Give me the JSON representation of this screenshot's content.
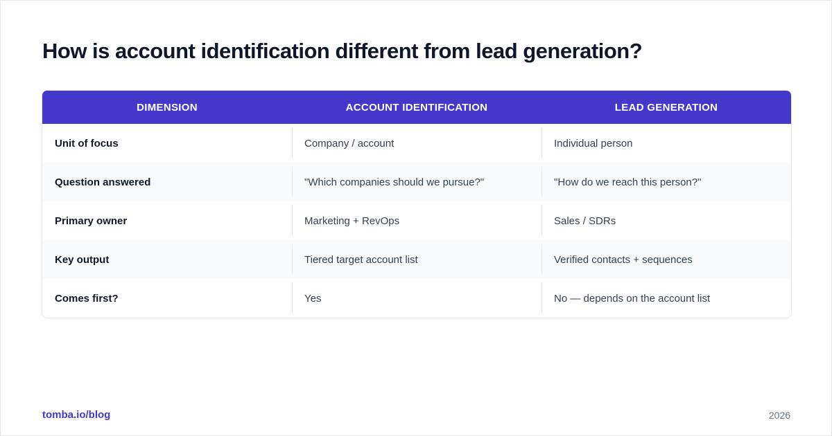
{
  "title": "How is account identification different from lead generation?",
  "table": {
    "headers": [
      "DIMENSION",
      "ACCOUNT IDENTIFICATION",
      "LEAD GENERATION"
    ],
    "rows": [
      [
        "Unit of focus",
        "Company / account",
        "Individual person"
      ],
      [
        "Question answered",
        "\"Which companies should we pursue?\"",
        "\"How do we reach this person?\""
      ],
      [
        "Primary owner",
        "Marketing + RevOps",
        "Sales / SDRs"
      ],
      [
        "Key output",
        "Tiered target account list",
        "Verified contacts + sequences"
      ],
      [
        "Comes first?",
        "Yes",
        "No — depends on the account list"
      ]
    ]
  },
  "footer": {
    "source": "tomba.io/blog",
    "year": "2026"
  },
  "colors": {
    "header_bg": "#4338ca",
    "accent": "#4338ca",
    "stripe": "#f8fafc"
  }
}
